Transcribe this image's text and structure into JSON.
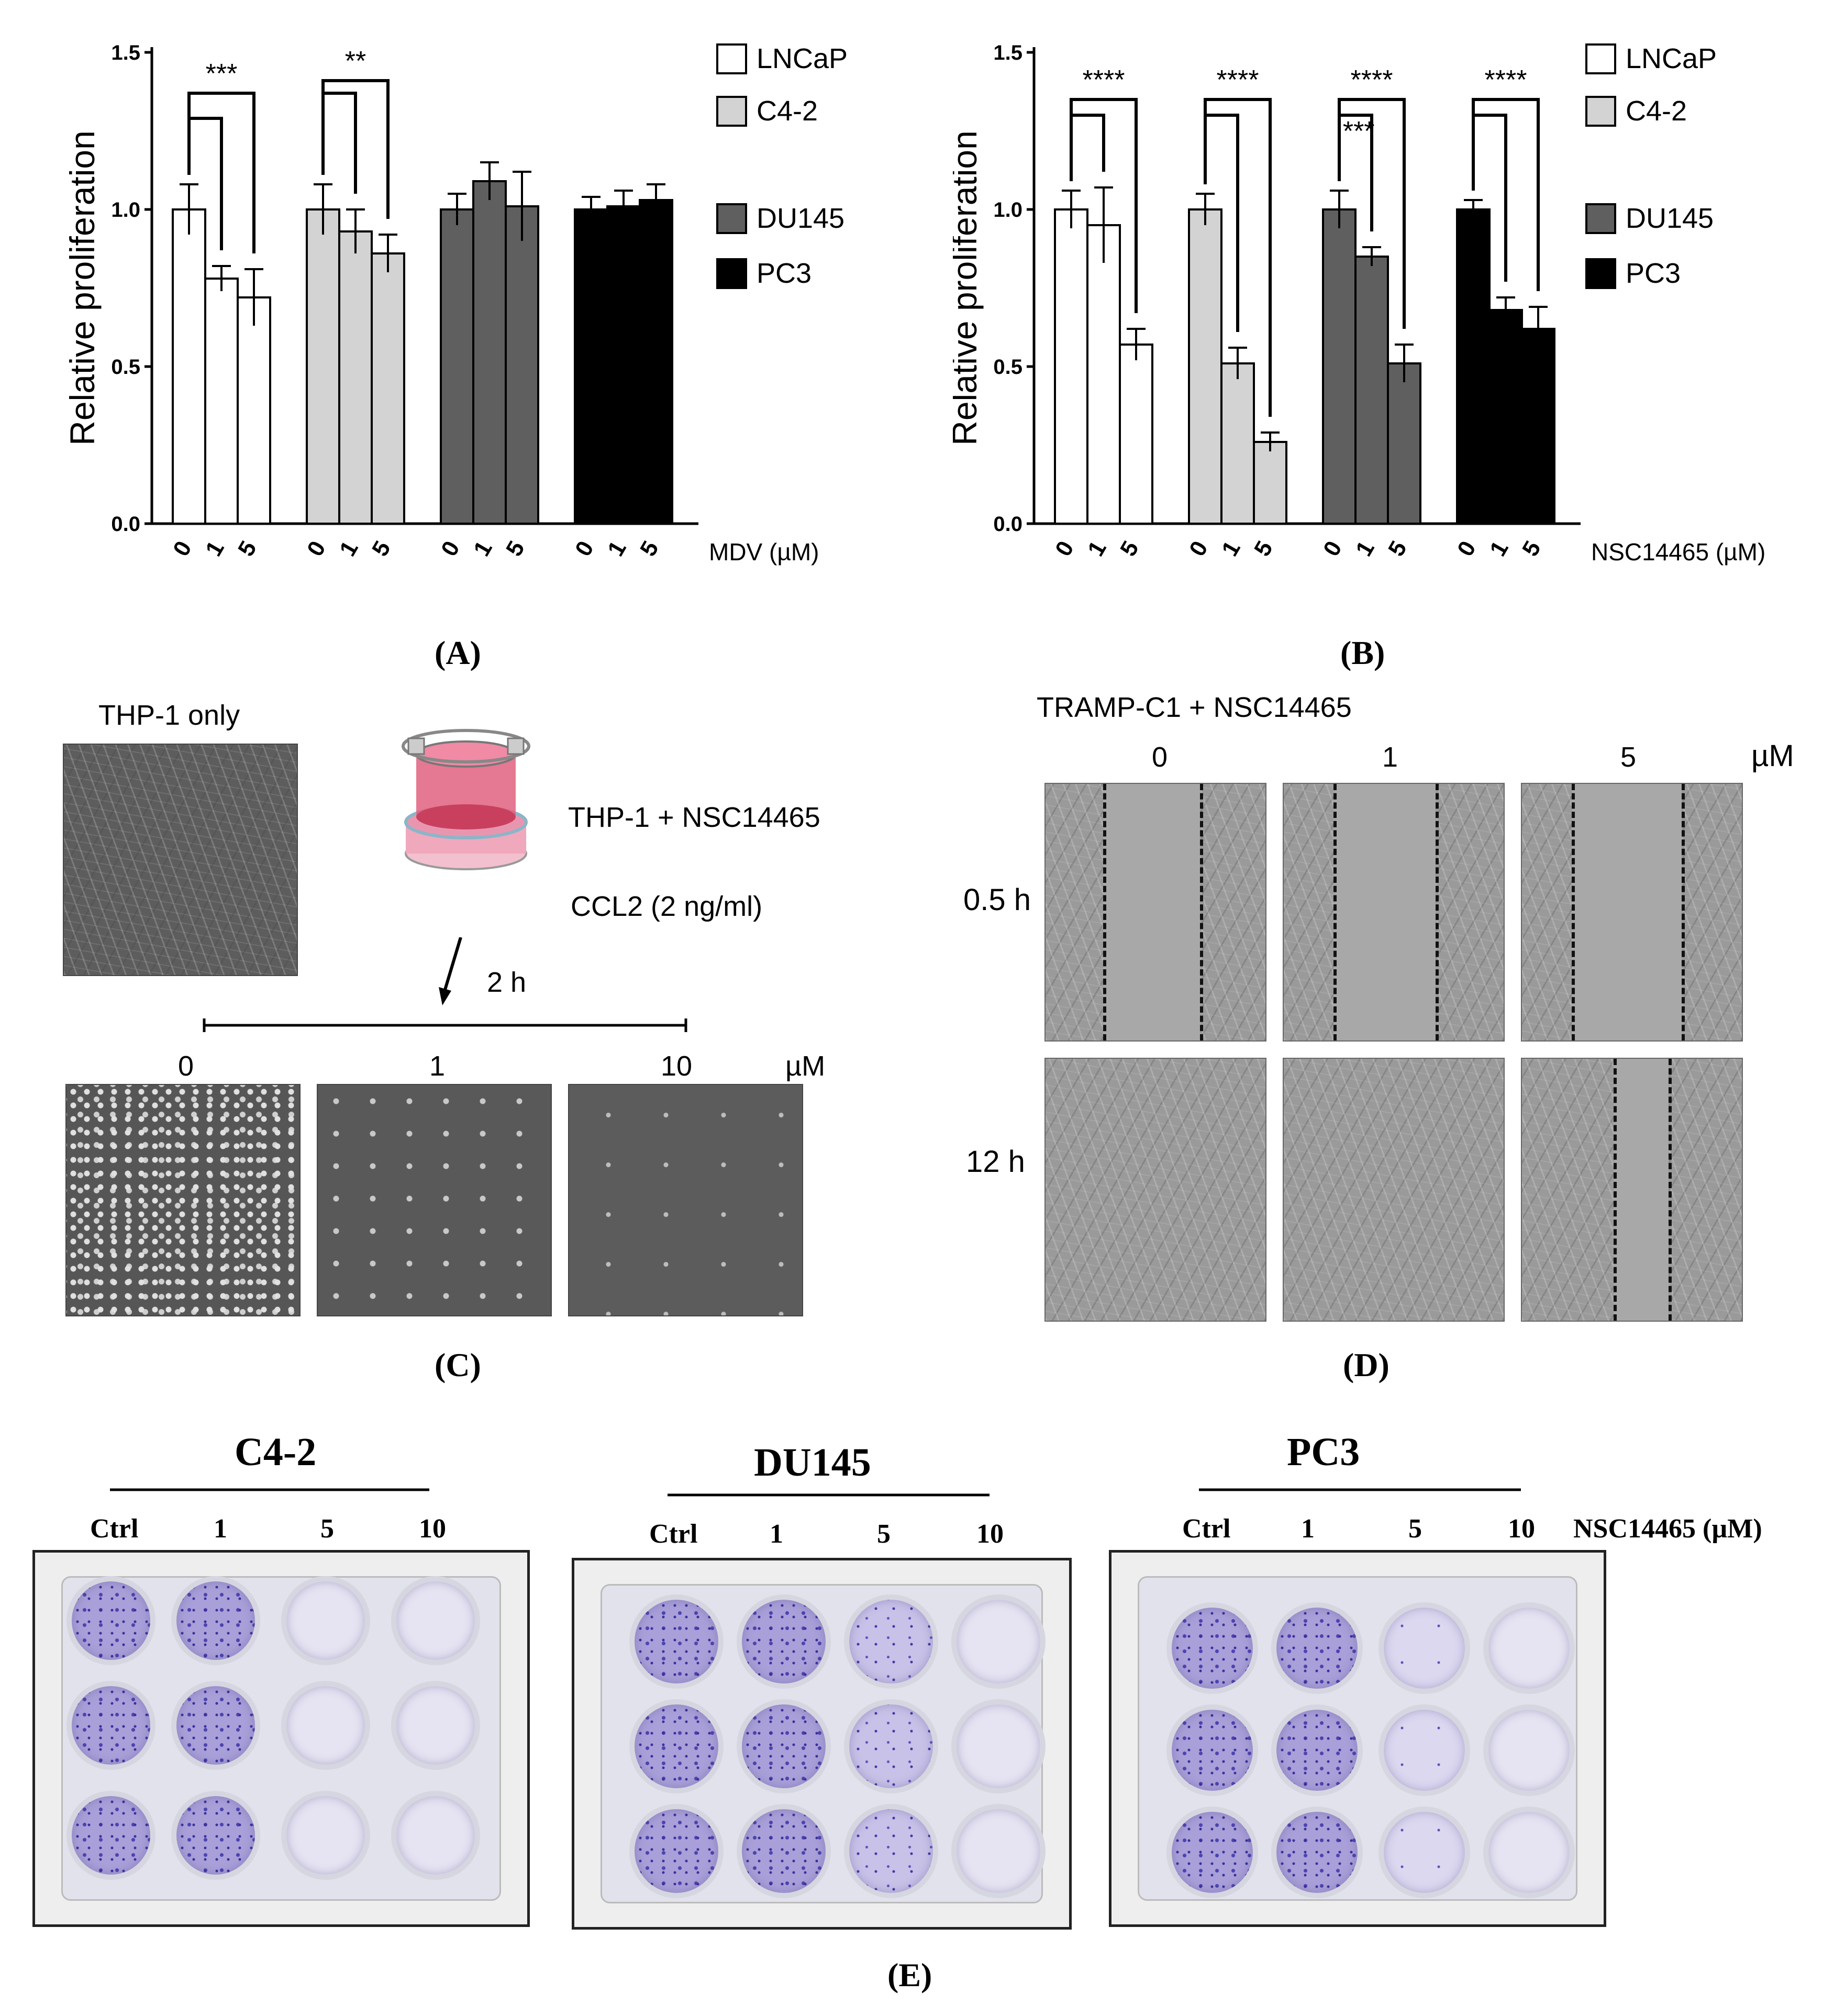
{
  "panel_labels": {
    "A": "(A)",
    "B": "(B)",
    "C": "(C)",
    "D": "(D)",
    "E": "(E)"
  },
  "chart_data": [
    {
      "type": "bar",
      "panel": "A",
      "ylabel": "Relative proliferation",
      "xlabel": "MDV (µM)",
      "ylim": [
        0,
        1.5
      ],
      "yticks": [
        "0.0",
        "0.5",
        "1.0",
        "1.5"
      ],
      "groups": [
        "LNCaP",
        "C4-2",
        "DU145",
        "PC3"
      ],
      "categories": [
        "0",
        "1",
        "5"
      ],
      "colors": [
        "#ffffff",
        "#d3d3d3",
        "#5f5f5f",
        "#000000"
      ],
      "series": [
        {
          "name": "LNCaP",
          "values": [
            1.0,
            0.78,
            0.72
          ],
          "errors": [
            0.08,
            0.04,
            0.09
          ]
        },
        {
          "name": "C4-2",
          "values": [
            1.0,
            0.93,
            0.86
          ],
          "errors": [
            0.08,
            0.07,
            0.06
          ]
        },
        {
          "name": "DU145",
          "values": [
            1.0,
            1.09,
            1.01
          ],
          "errors": [
            0.05,
            0.06,
            0.11
          ]
        },
        {
          "name": "PC3",
          "values": [
            1.0,
            1.01,
            1.03
          ],
          "errors": [
            0.04,
            0.05,
            0.05
          ]
        }
      ],
      "significance": [
        {
          "group": 0,
          "label": "***"
        },
        {
          "group": 1,
          "label": "**"
        }
      ],
      "legend": [
        "LNCaP",
        "C4-2",
        "DU145",
        "PC3"
      ]
    },
    {
      "type": "bar",
      "panel": "B",
      "ylabel": "Relative proliferation",
      "xlabel": "NSC14465 (µM)",
      "ylim": [
        0,
        1.5
      ],
      "yticks": [
        "0.0",
        "0.5",
        "1.0",
        "1.5"
      ],
      "groups": [
        "LNCaP",
        "C4-2",
        "DU145",
        "PC3"
      ],
      "categories": [
        "0",
        "1",
        "5"
      ],
      "colors": [
        "#ffffff",
        "#d3d3d3",
        "#5f5f5f",
        "#000000"
      ],
      "series": [
        {
          "name": "LNCaP",
          "values": [
            1.0,
            0.95,
            0.57
          ],
          "errors": [
            0.06,
            0.12,
            0.05
          ]
        },
        {
          "name": "C4-2",
          "values": [
            1.0,
            0.51,
            0.26
          ],
          "errors": [
            0.05,
            0.05,
            0.03
          ]
        },
        {
          "name": "DU145",
          "values": [
            1.0,
            0.85,
            0.51
          ],
          "errors": [
            0.06,
            0.03,
            0.06
          ]
        },
        {
          "name": "PC3",
          "values": [
            1.0,
            0.68,
            0.62
          ],
          "errors": [
            0.03,
            0.04,
            0.07
          ]
        }
      ],
      "significance": [
        {
          "group": 0,
          "label": "****"
        },
        {
          "group": 1,
          "label": "****"
        },
        {
          "group": 2,
          "label": "****"
        },
        {
          "group": 2,
          "label": "***"
        },
        {
          "group": 3,
          "label": "****"
        }
      ],
      "legend": [
        "LNCaP",
        "C4-2",
        "DU145",
        "PC3"
      ]
    }
  ],
  "panel_c": {
    "thp_only": "THP-1 only",
    "insert_label": "THP-1 + NSC14465",
    "ccl2_label": "CCL2 (2 ng/ml)",
    "time": "2 h",
    "doses": [
      "0",
      "1",
      "10"
    ],
    "unit": "µM"
  },
  "panel_d": {
    "title": "TRAMP-C1 + NSC14465",
    "doses": [
      "0",
      "1",
      "5"
    ],
    "unit": "µM",
    "times": [
      "0.5 h",
      "12 h"
    ]
  },
  "panel_e": {
    "plates": [
      "C4-2",
      "DU145",
      "PC3"
    ],
    "columns": [
      "Ctrl",
      "1",
      "5",
      "10"
    ],
    "treatment": "NSC14465 (µM)"
  }
}
